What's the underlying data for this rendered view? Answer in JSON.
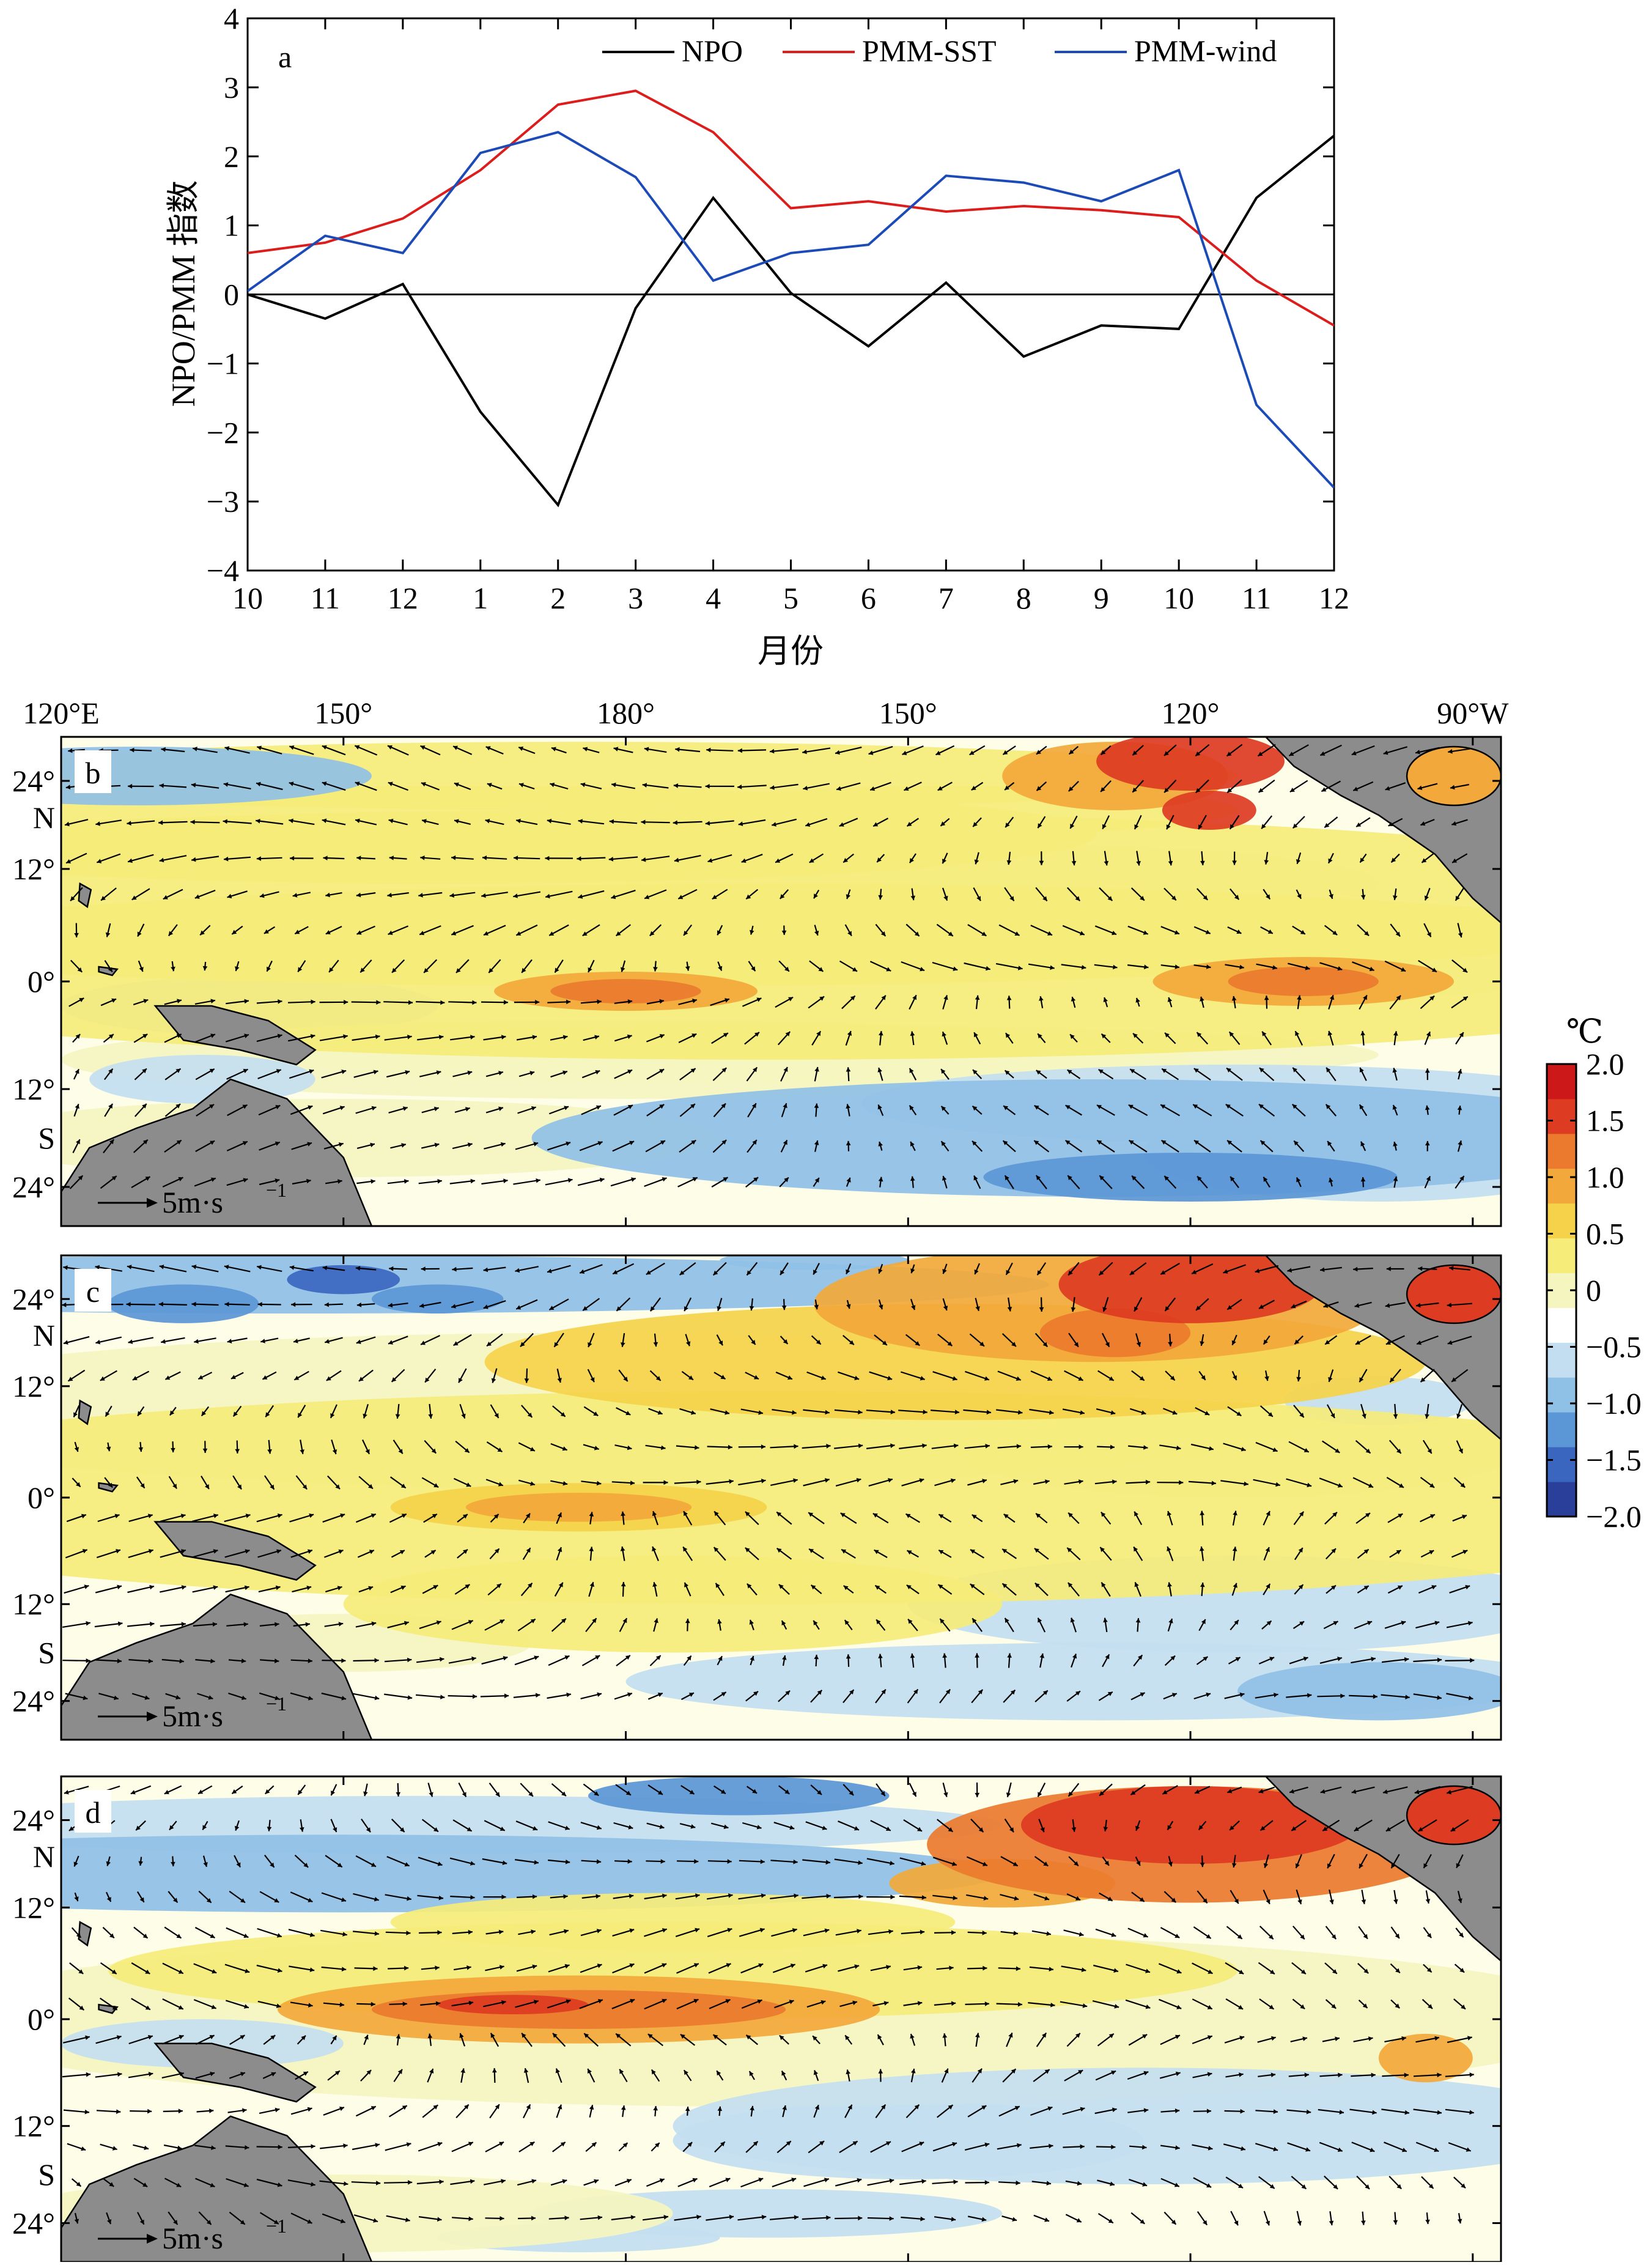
{
  "chart_data": [
    {
      "panel_label": "a",
      "type": "line",
      "ylabel": "NPO/PMM 指数",
      "xlabel": "月份",
      "x_categories": [
        "10",
        "11",
        "12",
        "1",
        "2",
        "3",
        "4",
        "5",
        "6",
        "7",
        "8",
        "9",
        "10",
        "11",
        "12"
      ],
      "ylim": [
        -4,
        4
      ],
      "yticks": [
        "4",
        "3",
        "2",
        "1",
        "0",
        "−1",
        "−2",
        "−3",
        "−4"
      ],
      "zero_line": true,
      "legend_position": "top",
      "series": [
        {
          "name": "NPO",
          "color": "#000000",
          "values": [
            0.0,
            -0.35,
            0.15,
            -1.7,
            -3.05,
            -0.2,
            1.4,
            0.02,
            -0.75,
            0.17,
            -0.9,
            -0.45,
            -0.5,
            1.4,
            2.3
          ]
        },
        {
          "name": "PMM-SST",
          "color": "#dd1c1c",
          "values": [
            0.6,
            0.75,
            1.1,
            1.8,
            2.75,
            2.95,
            2.35,
            1.25,
            1.35,
            1.2,
            1.28,
            1.22,
            1.12,
            0.2,
            -0.45
          ]
        },
        {
          "name": "PMM-wind",
          "color": "#1c4bb8",
          "values": [
            0.05,
            0.85,
            0.6,
            2.05,
            2.35,
            1.7,
            0.2,
            0.6,
            0.72,
            1.72,
            1.62,
            1.35,
            1.8,
            -1.6,
            -2.8
          ]
        }
      ]
    },
    {
      "type": "heatmap",
      "description_panels": [
        "b",
        "c",
        "d"
      ],
      "top_axis_labels": [
        "120°E",
        "150°",
        "180°",
        "150°",
        "120°",
        "90°W"
      ],
      "left_axis_labels": [
        "24°",
        "N",
        "12°",
        "0°",
        "12°",
        "S",
        "24°"
      ],
      "vector_scale_label": "5m·s",
      "vector_scale_exponent": "−1",
      "colorbar": {
        "unit": "℃",
        "range": [
          -2.0,
          2.0
        ],
        "tick_labels": [
          "2.0",
          "1.5",
          "1.0",
          "0.5",
          "0",
          "−0.5",
          "−1.0",
          "−1.5",
          "−2.0"
        ],
        "colors": [
          "#2a3f9a",
          "#3b66c0",
          "#5b96d6",
          "#8fc0e6",
          "#c3def0",
          "#ffffff",
          "#f5f5c0",
          "#f5ec7a",
          "#f5d24a",
          "#f2a83a",
          "#ec7a2e",
          "#dd3b22",
          "#cc1818"
        ]
      },
      "panels": [
        {
          "label": "b"
        },
        {
          "label": "c"
        },
        {
          "label": "d"
        }
      ]
    }
  ]
}
